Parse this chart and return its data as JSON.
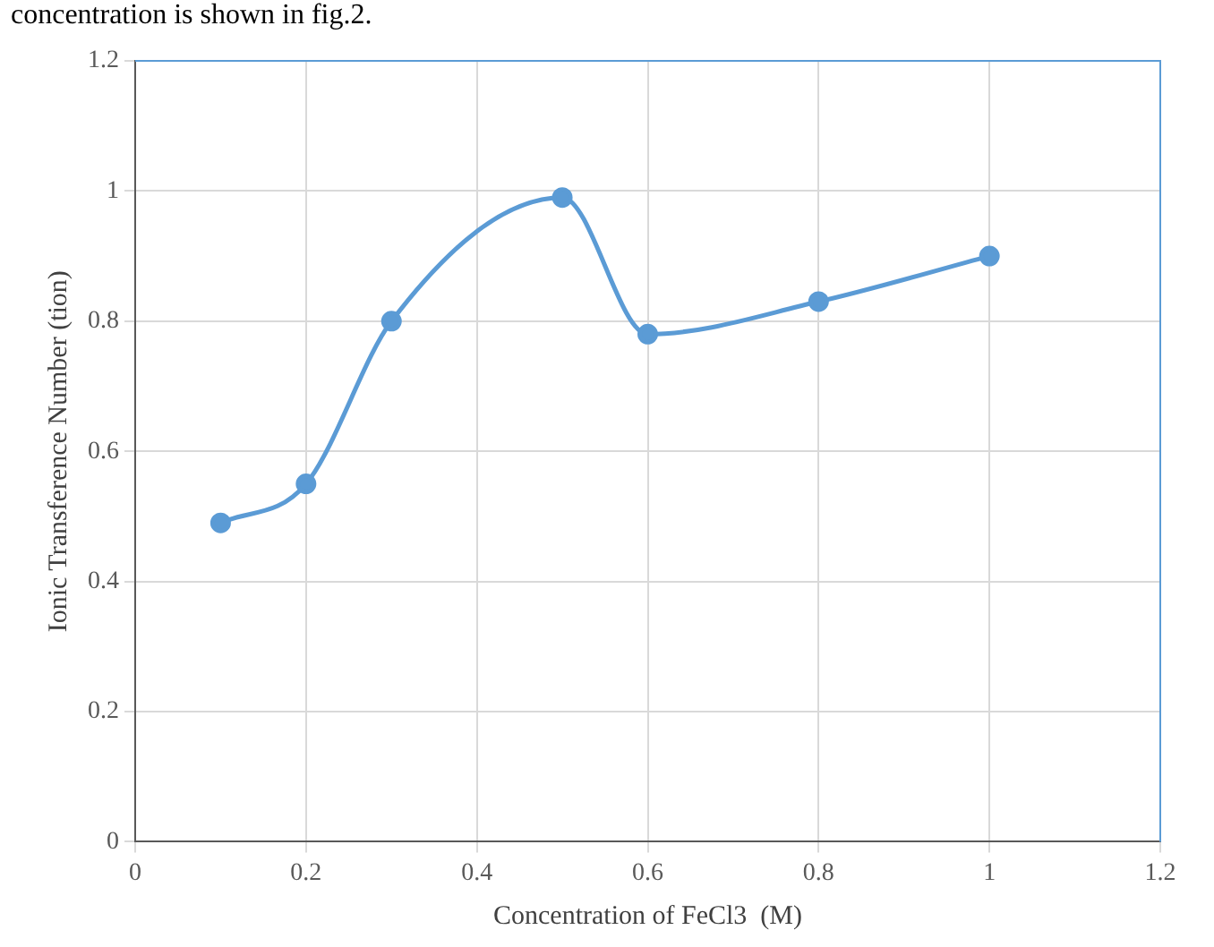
{
  "chart_data": {
    "type": "line",
    "xlabel": "Concentration of FeCl3  (M)",
    "ylabel": "Ionic Transference Number (tion)",
    "annotations": [
      "concentration is shown in fig.2."
    ],
    "x": [
      0.1,
      0.2,
      0.3,
      0.5,
      0.6,
      0.8,
      1
    ],
    "series": [
      {
        "color": "#5b9bd5",
        "values": [
          0.49,
          0.55,
          0.8,
          0.99,
          0.78,
          0.83,
          0.9
        ]
      }
    ],
    "xlim": [
      0,
      1.2
    ],
    "xticks": [
      0,
      0.2,
      0.4,
      0.6,
      0.8,
      1,
      1.2
    ],
    "ylim": [
      0,
      1.2
    ],
    "yticks": [
      0,
      0.2,
      0.4,
      0.6,
      0.8,
      1,
      1.2
    ],
    "grid": true,
    "legend": false,
    "marker": "circle",
    "line_style": "solid"
  }
}
